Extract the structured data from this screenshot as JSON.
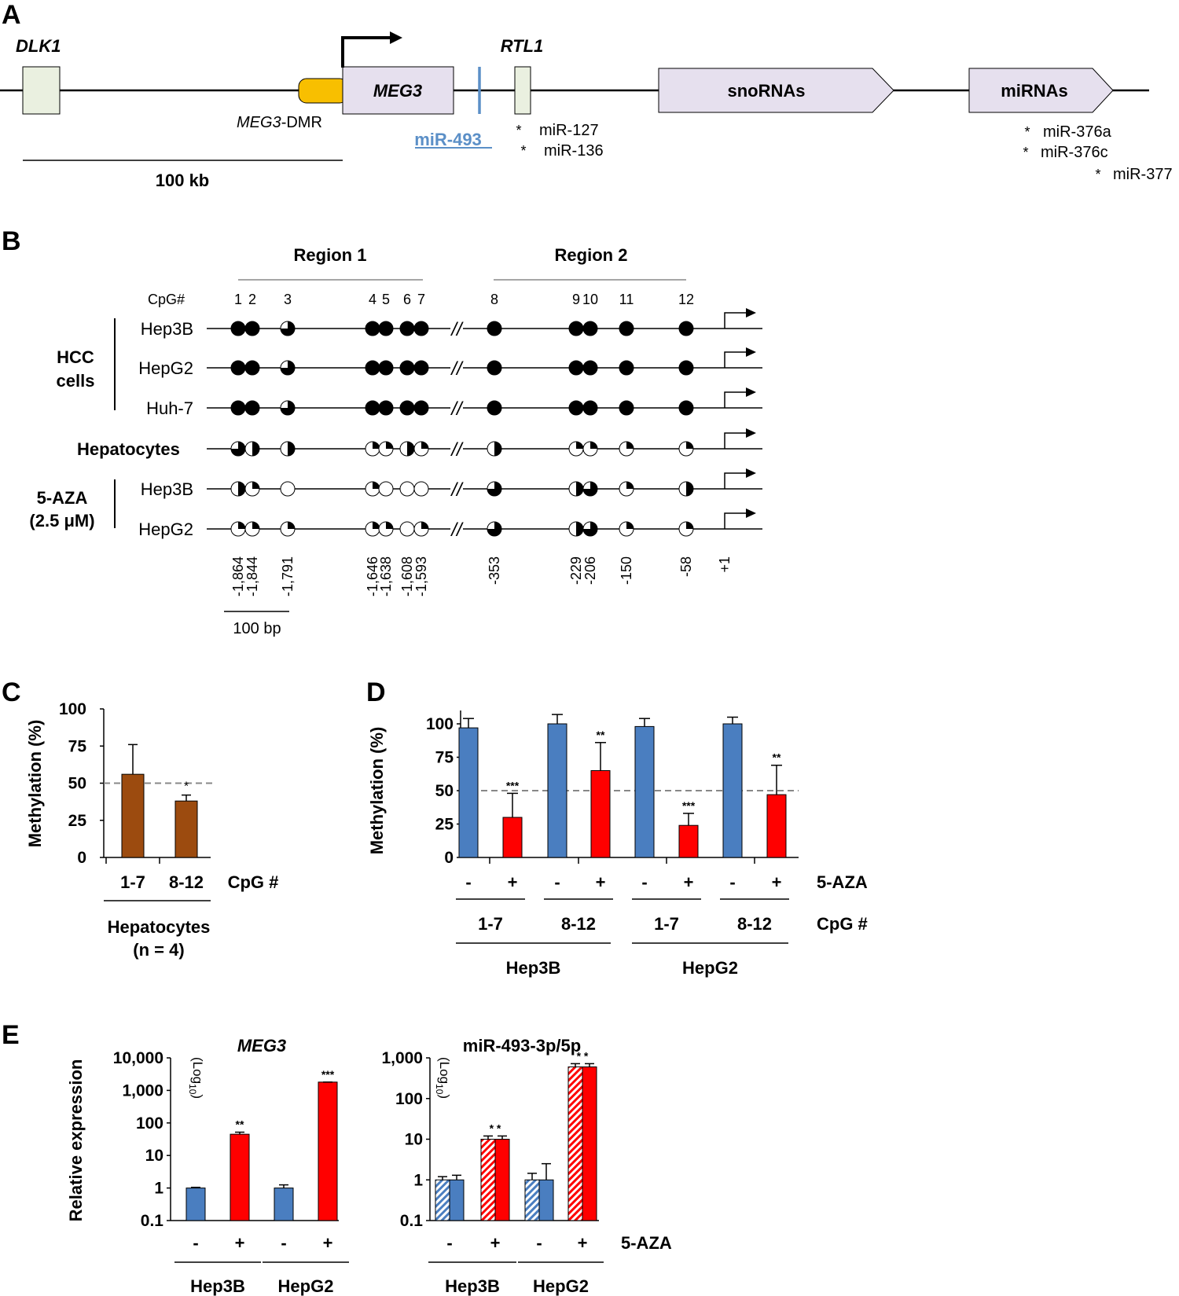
{
  "panelA": {
    "label": "A",
    "dlk1": "DLK1",
    "rtl1": "RTL1",
    "meg3": "MEG3",
    "dmr_italic": "MEG3",
    "dmr_suffix": "-DMR",
    "mir493": "miR-493",
    "snornas": "snoRNAs",
    "mirnas": "miRNAs",
    "mir_rtl1": [
      "miR-127",
      "miR-136"
    ],
    "mir_cluster": [
      "miR-376a",
      "miR-376c",
      "miR-377"
    ],
    "scale": "100 kb",
    "star": "*",
    "colors": {
      "locus_box": "#eaf0e0",
      "transcript_box": "#e6e0ee",
      "dmr": "#f8bf00",
      "mir493": "#5b8fc7"
    }
  },
  "panelB": {
    "label": "B",
    "region1": "Region 1",
    "region2": "Region 2",
    "cpg_header": "CpG#",
    "cpg_numbers": [
      "1",
      "2",
      "3",
      "4",
      "5",
      "6",
      "7",
      "8",
      "9",
      "10",
      "11",
      "12"
    ],
    "groups": [
      {
        "name_line1": "HCC",
        "name_line2": "cells"
      },
      {
        "name_line1": "Hepatocytes",
        "name_line2": ""
      },
      {
        "name_line1": "5-AZA",
        "name_line2": "(2.5 μM)"
      }
    ],
    "rows": [
      {
        "label": "Hep3B",
        "methylation": [
          1,
          1,
          0.75,
          1,
          1,
          1,
          1,
          1,
          1,
          1,
          1,
          1
        ]
      },
      {
        "label": "HepG2",
        "methylation": [
          1,
          1,
          0.75,
          1,
          1,
          1,
          1,
          1,
          1,
          1,
          1,
          1
        ]
      },
      {
        "label": "Huh-7",
        "methylation": [
          1,
          1,
          0.75,
          1,
          1,
          1,
          1,
          1,
          1,
          1,
          1,
          1
        ]
      },
      {
        "label": "",
        "methylation": [
          0.75,
          0.5,
          0.5,
          0.25,
          0.25,
          0.5,
          0.25,
          0.5,
          0.25,
          0.25,
          0.25,
          0.25
        ]
      },
      {
        "label": "Hep3B",
        "methylation": [
          0.5,
          0.25,
          0,
          0.25,
          0,
          0,
          0,
          0.75,
          0.5,
          0.75,
          0.25,
          0.5
        ]
      },
      {
        "label": "HepG2",
        "methylation": [
          0.25,
          0.25,
          0.25,
          0.25,
          0.25,
          0,
          0.25,
          0.75,
          0.5,
          0.75,
          0.25,
          0.25
        ]
      }
    ],
    "positions": [
      "-1,864",
      "-1,844",
      "-1,791",
      "-1,646",
      "-1,638",
      "-1,608",
      "-1,593",
      "-353",
      "-229",
      "-206",
      "-150",
      "-58",
      "+1"
    ],
    "scale": "100 bp",
    "break_mark": "//"
  },
  "panelC": {
    "label": "C",
    "chart_data": {
      "type": "bar",
      "categories": [
        "1-7",
        "8-12"
      ],
      "values": [
        56,
        38
      ],
      "errors": [
        20,
        4
      ],
      "significance": [
        "",
        "*"
      ],
      "reference_line": 50,
      "ylabel": "Methylation (%)",
      "yticks": [
        "0",
        "25",
        "50",
        "75",
        "100"
      ],
      "ylim": [
        0,
        100
      ],
      "xlabel": "CpG #",
      "group_label_line1": "Hepatocytes",
      "group_label_line2": "(n = 4)",
      "bar_color": "#9c4b0f"
    }
  },
  "panelD": {
    "label": "D",
    "chart_data": {
      "type": "bar",
      "treatment": [
        "-",
        "+",
        "-",
        "+",
        "-",
        "+",
        "-",
        "+"
      ],
      "values": [
        97,
        30,
        100,
        65,
        98,
        24,
        100,
        47
      ],
      "errors": [
        7,
        18,
        7,
        21,
        6,
        9,
        5,
        22
      ],
      "significance": [
        "",
        "***",
        "",
        "**",
        "",
        "***",
        "",
        "**"
      ],
      "reference_line": 50,
      "cpg_groups": [
        "1-7",
        "8-12",
        "1-7",
        "8-12"
      ],
      "cell_lines": [
        "Hep3B",
        "HepG2"
      ],
      "treatment_label": "5-AZA",
      "cpg_label": "CpG #",
      "ylabel": "Methylation (%)",
      "yticks": [
        "0",
        "25",
        "50",
        "75",
        "100"
      ],
      "ylim": [
        0,
        110
      ],
      "colors": {
        "untreated": "#4a7ec0",
        "treated": "#ff0000"
      }
    }
  },
  "panelE": {
    "label": "E",
    "ylabel": "Relative expression",
    "log_note_prefix": "(Log",
    "log_note_sub": "10",
    "log_note_suffix": ")",
    "treatment_label": "5-AZA",
    "charts": [
      {
        "type": "bar",
        "title": "MEG3",
        "scale": "log",
        "yticks": [
          "0.1",
          "1",
          "10",
          "100",
          "1,000",
          "10,000"
        ],
        "ylim": [
          0.1,
          10000
        ],
        "treatment": [
          "-",
          "+",
          "-",
          "+"
        ],
        "values": [
          1,
          45,
          1,
          1800
        ],
        "err_hi": [
          1.05,
          52,
          1.25,
          1800
        ],
        "significance": [
          "",
          "**",
          "",
          "***"
        ],
        "cell_lines": [
          "Hep3B",
          "HepG2"
        ]
      },
      {
        "type": "bar",
        "title": "miR-493-3p/5p",
        "scale": "log",
        "yticks": [
          "0.1",
          "1",
          "10",
          "100",
          "1,000"
        ],
        "ylim": [
          0.1,
          1000
        ],
        "treatment": [
          "-",
          "+",
          "-",
          "+"
        ],
        "series": [
          {
            "name": "miR-493-3p",
            "pattern": "hatched",
            "values": [
              1,
              10,
              1,
              600
            ],
            "err_hi": [
              1.2,
              12,
              1.45,
              720
            ]
          },
          {
            "name": "miR-493-5p",
            "pattern": "solid",
            "values": [
              1,
              10,
              1,
              600
            ],
            "err_hi": [
              1.3,
              12,
              2.5,
              720
            ]
          }
        ],
        "significance": [
          "",
          "* *",
          "",
          "* *"
        ],
        "cell_lines": [
          "Hep3B",
          "HepG2"
        ]
      }
    ]
  }
}
